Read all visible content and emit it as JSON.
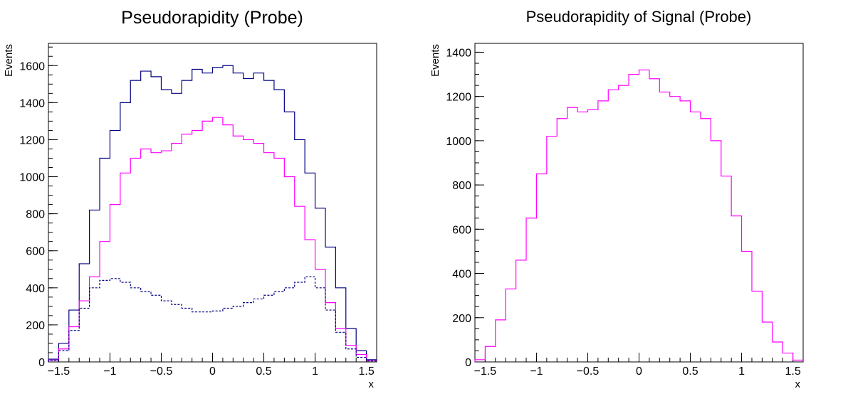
{
  "chart_data": [
    {
      "type": "line",
      "step": true,
      "title": "Pseudorapidity (Probe)",
      "xlabel": "x",
      "ylabel": "Events",
      "xlim": [
        -1.6,
        1.6
      ],
      "ylim": [
        0,
        1720
      ],
      "xticks": [
        -1.5,
        -1,
        -0.5,
        0,
        0.5,
        1,
        1.5
      ],
      "xtick_labels": [
        "−1.5",
        "−1",
        "−0.5",
        "0",
        "0.5",
        "1",
        "1.5"
      ],
      "yticks": [
        0,
        200,
        400,
        600,
        800,
        1000,
        1200,
        1400,
        1600
      ],
      "ytick_labels": [
        "0",
        "200",
        "400",
        "600",
        "800",
        "1000",
        "1200",
        "1400",
        "1600"
      ],
      "x": [
        -1.55,
        -1.45,
        -1.35,
        -1.25,
        -1.15,
        -1.05,
        -0.95,
        -0.85,
        -0.75,
        -0.65,
        -0.55,
        -0.45,
        -0.35,
        -0.25,
        -0.15,
        -0.05,
        0.05,
        0.15,
        0.25,
        0.35,
        0.45,
        0.55,
        0.65,
        0.75,
        0.85,
        0.95,
        1.05,
        1.15,
        1.25,
        1.35,
        1.45,
        1.55
      ],
      "series": [
        {
          "color": "#000080",
          "style": "solid",
          "values": [
            15,
            100,
            280,
            530,
            820,
            1100,
            1250,
            1400,
            1520,
            1570,
            1540,
            1470,
            1450,
            1520,
            1580,
            1560,
            1590,
            1600,
            1560,
            1530,
            1560,
            1520,
            1470,
            1350,
            1200,
            1020,
            830,
            620,
            400,
            180,
            60,
            12
          ]
        },
        {
          "color": "#ff00ff",
          "style": "solid",
          "values": [
            10,
            70,
            190,
            330,
            460,
            650,
            850,
            1020,
            1100,
            1150,
            1130,
            1140,
            1180,
            1230,
            1250,
            1300,
            1320,
            1280,
            1220,
            1200,
            1180,
            1130,
            1100,
            1000,
            840,
            660,
            500,
            320,
            180,
            90,
            40,
            8
          ]
        },
        {
          "color": "#000080",
          "style": "dashed",
          "values": [
            8,
            60,
            170,
            290,
            400,
            440,
            450,
            430,
            400,
            380,
            360,
            330,
            310,
            290,
            270,
            270,
            275,
            290,
            300,
            320,
            340,
            360,
            380,
            400,
            430,
            460,
            400,
            280,
            160,
            70,
            25,
            5
          ]
        }
      ]
    },
    {
      "type": "line",
      "step": true,
      "title": "Pseudorapidity of Signal (Probe)",
      "xlabel": "x",
      "ylabel": "Events",
      "xlim": [
        -1.6,
        1.6
      ],
      "ylim": [
        0,
        1440
      ],
      "xticks": [
        -1.5,
        -1,
        -0.5,
        0,
        0.5,
        1,
        1.5
      ],
      "xtick_labels": [
        "−1.5",
        "−1",
        "−0.5",
        "0",
        "0.5",
        "1",
        "1.5"
      ],
      "yticks": [
        0,
        200,
        400,
        600,
        800,
        1000,
        1200,
        1400
      ],
      "ytick_labels": [
        "0",
        "200",
        "400",
        "600",
        "800",
        "1000",
        "1200",
        "1400"
      ],
      "x": [
        -1.55,
        -1.45,
        -1.35,
        -1.25,
        -1.15,
        -1.05,
        -0.95,
        -0.85,
        -0.75,
        -0.65,
        -0.55,
        -0.45,
        -0.35,
        -0.25,
        -0.15,
        -0.05,
        0.05,
        0.15,
        0.25,
        0.35,
        0.45,
        0.55,
        0.65,
        0.75,
        0.85,
        0.95,
        1.05,
        1.15,
        1.25,
        1.35,
        1.45,
        1.55
      ],
      "series": [
        {
          "color": "#ff00ff",
          "style": "solid",
          "values": [
            10,
            70,
            190,
            330,
            460,
            650,
            850,
            1020,
            1100,
            1150,
            1130,
            1140,
            1180,
            1230,
            1250,
            1300,
            1320,
            1280,
            1220,
            1200,
            1180,
            1130,
            1100,
            1000,
            840,
            660,
            500,
            320,
            180,
            90,
            40,
            8
          ]
        }
      ]
    }
  ]
}
